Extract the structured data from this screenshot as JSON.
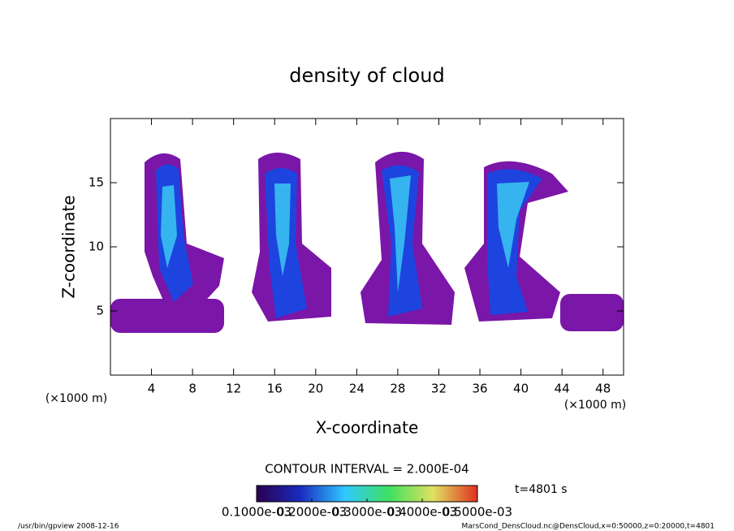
{
  "chart_data": {
    "type": "contour",
    "title": "density of cloud",
    "xlabel": "X-coordinate",
    "ylabel": "Z-coordinate",
    "x_unit_left": "(×1000 m)",
    "x_unit_right": "(×1000 m)",
    "xlim": [
      0,
      50
    ],
    "ylim": [
      0,
      20
    ],
    "xticks": [
      4,
      8,
      12,
      16,
      20,
      24,
      28,
      32,
      36,
      40,
      44,
      48
    ],
    "yticks": [
      5,
      10,
      15
    ],
    "contour_interval": "CONTOUR INTERVAL = 2.000E-04",
    "time_label": "t=4801 s",
    "colorbar": {
      "lim": [
        0.0001,
        0.0005
      ],
      "ticks": [
        {
          "value": 0.0001,
          "label": "0.1000e-03"
        },
        {
          "value": 0.0002,
          "label": "0.2000e-03"
        },
        {
          "value": 0.0003,
          "label": "0.3000e-03"
        },
        {
          "value": 0.0004,
          "label": "0.4000e-03"
        },
        {
          "value": 0.0005,
          "label": "0.5000e-03"
        }
      ]
    },
    "footer_left": "/usr/bin/gpview  2008-12-16",
    "footer_right": "MarsCond_DensCloud.nc@DensCloud,x=0:50000,z=0:20000,t=4801"
  }
}
